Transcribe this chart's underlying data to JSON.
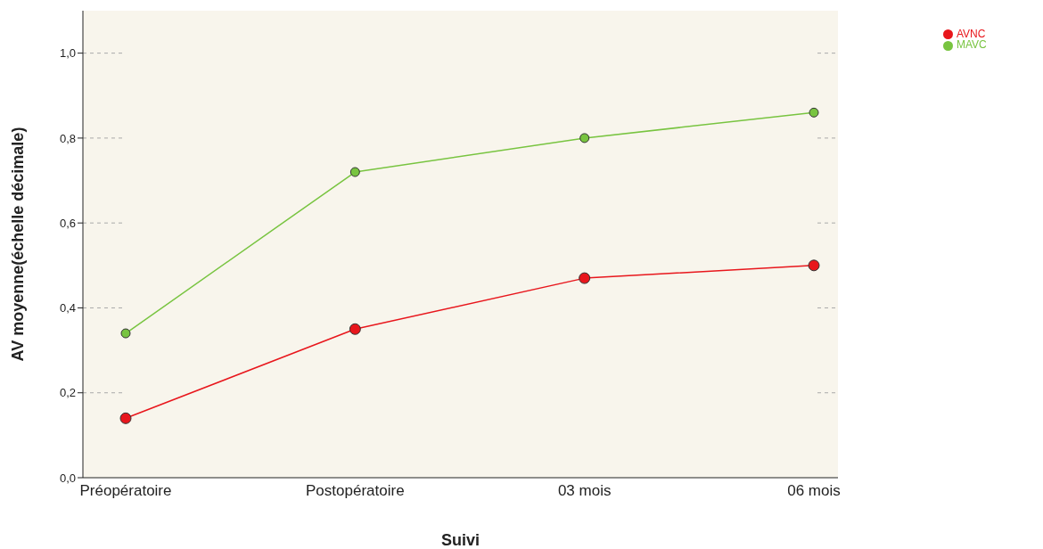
{
  "chart_data": {
    "type": "line",
    "xlabel": "Suivi",
    "ylabel": "AV moyenne(échelle décimale)",
    "categories": [
      "Préopératoire",
      "Postopératoire",
      "03 mois",
      "06 mois"
    ],
    "series": [
      {
        "name": "AVNC",
        "color": "#e8161c",
        "values": [
          0.14,
          0.35,
          0.47,
          0.5
        ]
      },
      {
        "name": "MAVC",
        "color": "#78c440",
        "values": [
          0.34,
          0.72,
          0.8,
          0.86
        ]
      }
    ],
    "ylim": [
      0,
      1.1
    ],
    "yticks": [
      {
        "value": 0,
        "label": "0,0"
      },
      {
        "value": 0.2,
        "label": "0,2"
      },
      {
        "value": 0.4,
        "label": "0,4"
      },
      {
        "value": 0.6,
        "label": "0,6"
      },
      {
        "value": 0.8,
        "label": "0,8"
      },
      {
        "value": 1,
        "label": "1,0"
      }
    ],
    "grid": "y",
    "legend": "top right",
    "marker": "circle",
    "line_style": "solid"
  }
}
